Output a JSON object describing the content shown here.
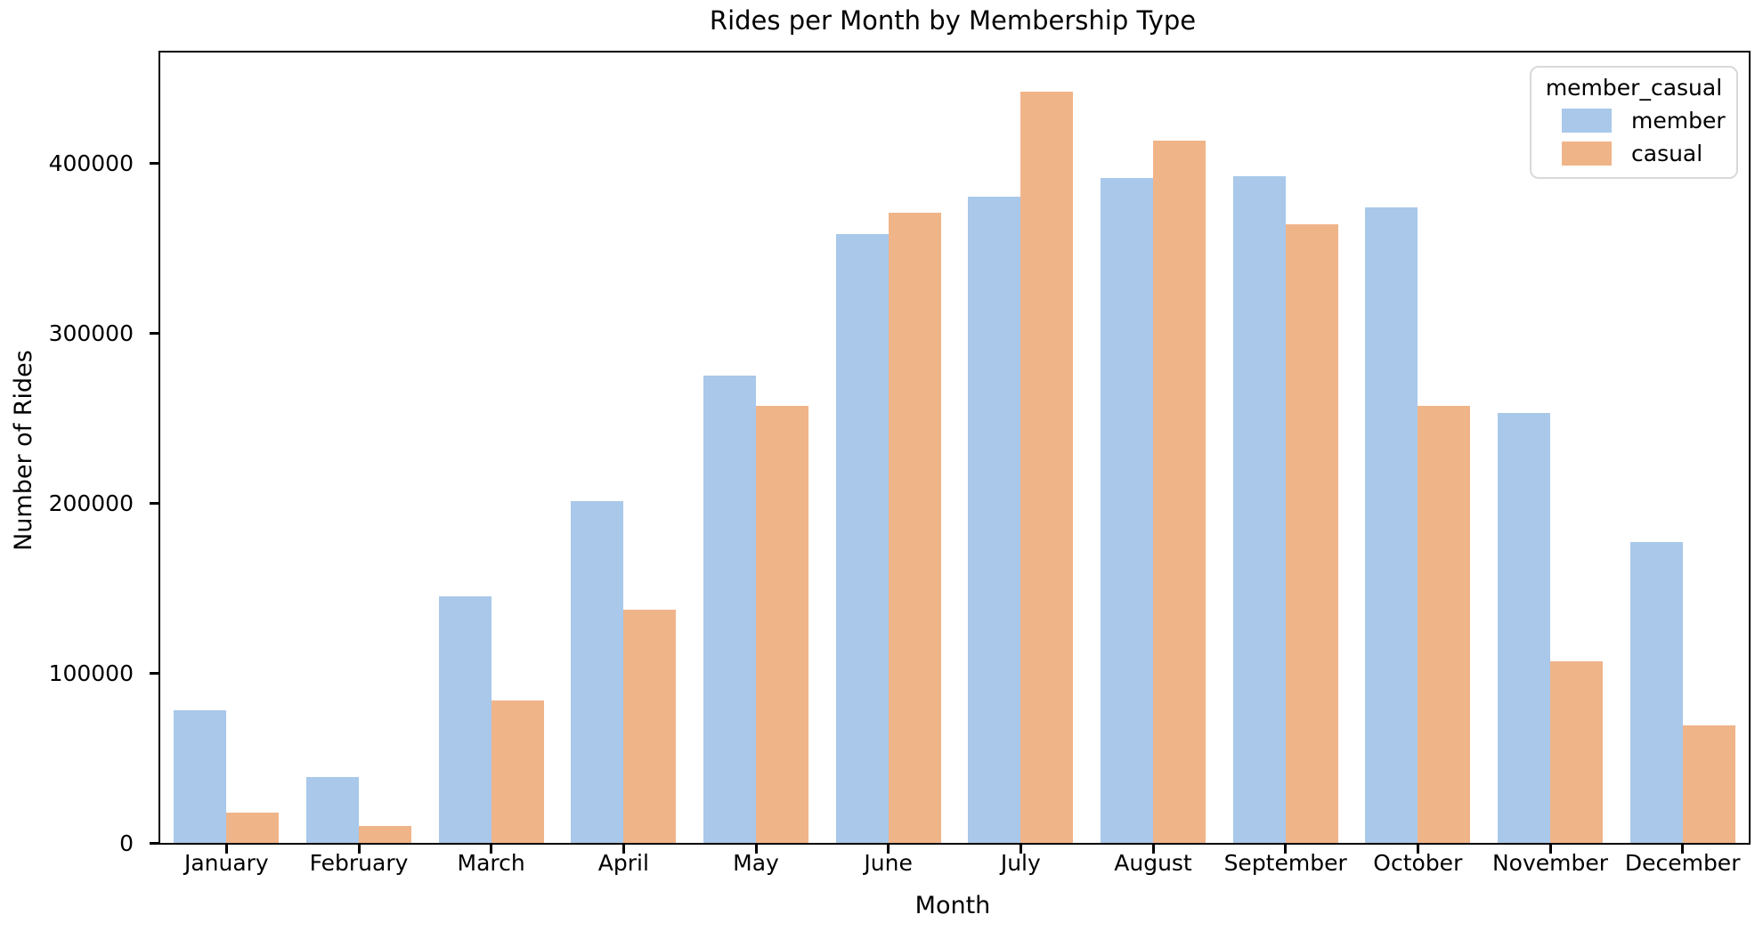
{
  "figure": {
    "title": "Rides per Month by Membership Type",
    "xlabel": "Month",
    "ylabel": "Number of Rides"
  },
  "legend": {
    "title": "member_casual",
    "entries": [
      {
        "label": "member",
        "color": "#a9c8ea"
      },
      {
        "label": "casual",
        "color": "#f0b489"
      }
    ]
  },
  "chart_data": {
    "type": "bar",
    "title": "Rides per Month by Membership Type",
    "xlabel": "Month",
    "ylabel": "Number of Rides",
    "categories": [
      "January",
      "February",
      "March",
      "April",
      "May",
      "June",
      "July",
      "August",
      "September",
      "October",
      "November",
      "December"
    ],
    "series": [
      {
        "name": "member",
        "color": "#a9c8ea",
        "values": [
          78000,
          39000,
          145000,
          201000,
          275000,
          358000,
          380000,
          391000,
          392000,
          374000,
          253000,
          177000
        ]
      },
      {
        "name": "casual",
        "color": "#f0b489",
        "values": [
          18000,
          10000,
          84000,
          137000,
          257000,
          371000,
          442000,
          413000,
          364000,
          257000,
          107000,
          69000
        ]
      }
    ],
    "yticks": [
      0,
      100000,
      200000,
      300000,
      400000
    ],
    "ylim": [
      0,
      465000
    ],
    "grid": false,
    "legend_title": "member_casual",
    "legend_position": "upper right"
  }
}
